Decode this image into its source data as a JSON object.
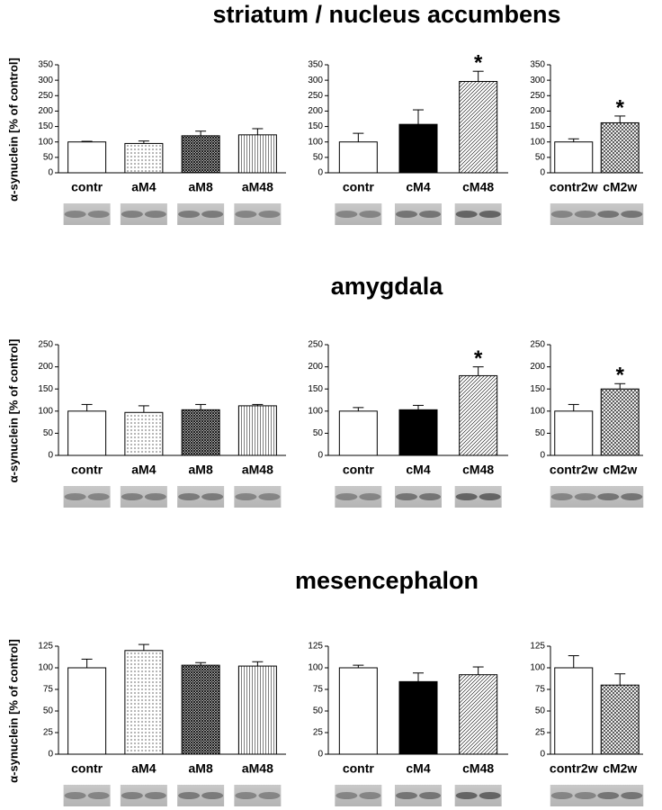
{
  "section_titles": [
    "striatum / nucleus accumbens",
    "amygdala",
    "mesencephalon"
  ],
  "chart_data": [
    {
      "type": "bar",
      "ylabel": "α-synuclein [% of control]",
      "categories": [
        "contr",
        "aM4",
        "aM8",
        "aM48"
      ],
      "values": [
        100,
        95,
        120,
        123
      ],
      "errors": [
        2,
        8,
        15,
        20
      ],
      "patterns": [
        "none",
        "dots",
        "crosshatch",
        "vlines"
      ],
      "color": "#000000",
      "ylim": [
        0,
        350
      ],
      "yticks": [
        0,
        50,
        100,
        150,
        200,
        250,
        300,
        350
      ]
    },
    {
      "type": "bar",
      "categories": [
        "contr",
        "cM4",
        "cM48"
      ],
      "values": [
        100,
        157,
        296
      ],
      "errors": [
        28,
        47,
        33
      ],
      "patterns": [
        "none",
        "solid",
        "diagonal"
      ],
      "color": "#000000",
      "ylim": [
        0,
        350
      ],
      "yticks": [
        0,
        50,
        100,
        150,
        200,
        250,
        300,
        350
      ],
      "annotations": [
        {
          "text": "*",
          "category": "cM48"
        }
      ]
    },
    {
      "type": "bar",
      "categories": [
        "contr2w",
        "cM2w"
      ],
      "values": [
        100,
        162
      ],
      "errors": [
        10,
        22
      ],
      "patterns": [
        "none",
        "grid"
      ],
      "color": "#000000",
      "ylim": [
        0,
        350
      ],
      "yticks": [
        0,
        50,
        100,
        150,
        200,
        250,
        300,
        350
      ],
      "annotations": [
        {
          "text": "*",
          "category": "cM2w"
        }
      ]
    },
    {
      "type": "bar",
      "ylabel": "α-synuclein [% of control]",
      "categories": [
        "contr",
        "aM4",
        "aM8",
        "aM48"
      ],
      "values": [
        100,
        97,
        103,
        112
      ],
      "errors": [
        15,
        15,
        12,
        3
      ],
      "patterns": [
        "none",
        "dots",
        "crosshatch",
        "vlines"
      ],
      "color": "#000000",
      "ylim": [
        0,
        250
      ],
      "yticks": [
        0,
        50,
        100,
        150,
        200,
        250
      ]
    },
    {
      "type": "bar",
      "categories": [
        "contr",
        "cM4",
        "cM48"
      ],
      "values": [
        100,
        103,
        180
      ],
      "errors": [
        8,
        10,
        20
      ],
      "patterns": [
        "none",
        "solid",
        "diagonal"
      ],
      "color": "#000000",
      "ylim": [
        0,
        250
      ],
      "yticks": [
        0,
        50,
        100,
        150,
        200,
        250
      ],
      "annotations": [
        {
          "text": "*",
          "category": "cM48"
        }
      ]
    },
    {
      "type": "bar",
      "categories": [
        "contr2w",
        "cM2w"
      ],
      "values": [
        100,
        150
      ],
      "errors": [
        15,
        12
      ],
      "patterns": [
        "none",
        "grid"
      ],
      "color": "#000000",
      "ylim": [
        0,
        250
      ],
      "yticks": [
        0,
        50,
        100,
        150,
        200,
        250
      ],
      "annotations": [
        {
          "text": "*",
          "category": "cM2w"
        }
      ]
    },
    {
      "type": "bar",
      "ylabel": "α-synuclein [% of control]",
      "categories": [
        "contr",
        "aM4",
        "aM8",
        "aM48"
      ],
      "values": [
        100,
        120,
        103,
        102
      ],
      "errors": [
        10,
        7,
        3,
        5
      ],
      "patterns": [
        "none",
        "dots",
        "crosshatch",
        "vlines"
      ],
      "color": "#000000",
      "ylim": [
        0,
        125
      ],
      "yticks": [
        0,
        25,
        50,
        75,
        100,
        125
      ]
    },
    {
      "type": "bar",
      "categories": [
        "contr",
        "cM4",
        "cM48"
      ],
      "values": [
        100,
        84,
        92
      ],
      "errors": [
        3,
        10,
        9
      ],
      "patterns": [
        "none",
        "solid",
        "diagonal"
      ],
      "color": "#000000",
      "ylim": [
        0,
        125
      ],
      "yticks": [
        0,
        25,
        50,
        75,
        100,
        125
      ]
    },
    {
      "type": "bar",
      "categories": [
        "contr2w",
        "cM2w"
      ],
      "values": [
        100,
        80
      ],
      "errors": [
        14,
        13
      ],
      "patterns": [
        "none",
        "grid"
      ],
      "color": "#000000",
      "ylim": [
        0,
        125
      ],
      "yticks": [
        0,
        25,
        50,
        75,
        100,
        125
      ]
    }
  ]
}
